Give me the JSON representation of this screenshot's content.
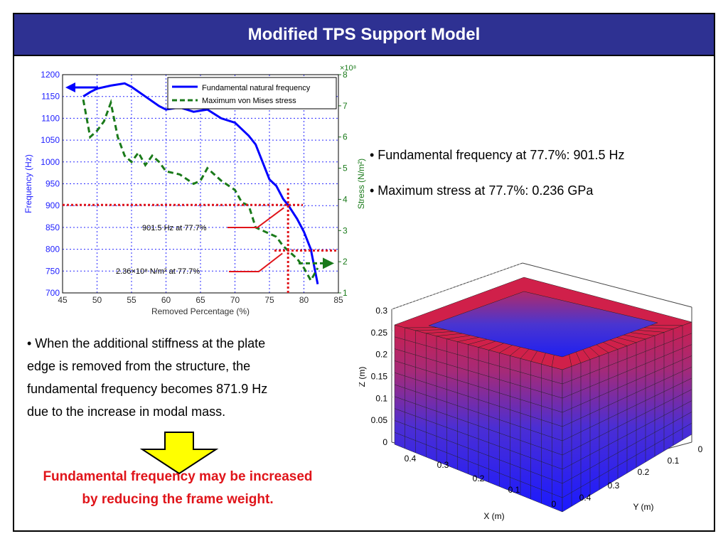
{
  "slide": {
    "title": "Modified TPS Support Model",
    "bullets_right": [
      "• Fundamental frequency at 77.7%: 901.5 Hz",
      "• Maximum stress at 77.7%: 0.236 GPa"
    ],
    "bullet_left_lines": [
      "• When the additional stiffness at the plate",
      "edge is removed from the structure, the",
      "fundamental frequency becomes 871.9 Hz",
      "due to the increase in modal mass."
    ],
    "conclusion_lines": [
      "Fundamental frequency may be increased",
      "by reducing the frame weight."
    ],
    "arrow_icon": "down-arrow-icon"
  },
  "colors": {
    "title_bar": "#2e3192",
    "frequency_line": "#0000ff",
    "stress_line": "#1a7a1a",
    "annotation_red": "#e0141a",
    "arrow_yellow": "#ffff00"
  },
  "chart_data": [
    {
      "type": "line",
      "xlabel": "Removed Percentage (%)",
      "ylabel": "Frequency (Hz)",
      "y2label": "Stress (N/m²)",
      "y2_exponent": "×10⁸",
      "xlim": [
        45,
        85
      ],
      "ylim": [
        700,
        1200
      ],
      "y2lim": [
        1,
        8
      ],
      "xticks": [
        45,
        50,
        55,
        60,
        65,
        70,
        75,
        80,
        85
      ],
      "yticks": [
        700,
        750,
        800,
        850,
        900,
        950,
        1000,
        1050,
        1100,
        1150,
        1200
      ],
      "y2ticks": [
        1,
        2,
        3,
        4,
        5,
        6,
        7,
        8
      ],
      "grid": true,
      "legend_position": "top-right",
      "series": [
        {
          "name": "Fundamental natural frequency",
          "axis": "left",
          "x": [
            48,
            49,
            50,
            52,
            54,
            55,
            57,
            59,
            60,
            62,
            64,
            66,
            68,
            70,
            72,
            73,
            74,
            75,
            76,
            77,
            77.7,
            79,
            80,
            81,
            82
          ],
          "values": [
            1150,
            1160,
            1168,
            1175,
            1180,
            1172,
            1150,
            1128,
            1120,
            1125,
            1115,
            1120,
            1100,
            1090,
            1060,
            1040,
            1000,
            960,
            945,
            915,
            901.5,
            870,
            840,
            800,
            720
          ]
        },
        {
          "name": "Maximum von Mises stress",
          "axis": "right",
          "x": [
            48,
            49,
            50,
            51,
            52,
            53,
            54,
            55,
            56,
            57,
            58,
            59,
            60,
            62,
            64,
            65,
            66,
            67,
            68,
            70,
            71,
            72,
            73,
            74,
            75,
            76,
            77,
            77.7,
            79,
            80,
            81,
            82
          ],
          "values": [
            7.2,
            6.0,
            6.2,
            6.5,
            7.1,
            6.0,
            5.4,
            5.2,
            5.5,
            5.1,
            5.4,
            5.2,
            4.9,
            4.8,
            4.5,
            4.6,
            5.0,
            4.8,
            4.6,
            4.3,
            3.9,
            3.8,
            3.1,
            3.0,
            2.9,
            2.8,
            2.5,
            2.36,
            2.1,
            1.8,
            1.4,
            1.8
          ]
        }
      ],
      "annotations": [
        "901.5 Hz at 77.7%",
        "2.36×10⁸ N/m² at 77.7%"
      ]
    },
    {
      "type": "3d-surface",
      "xlabel": "X (m)",
      "ylabel": "Y (m)",
      "zlabel": "Z (m)",
      "xticks": [
        0,
        0.1,
        0.2,
        0.3,
        0.4
      ],
      "yticks": [
        0,
        0.1,
        0.2,
        0.3,
        0.4
      ],
      "zticks": [
        0,
        0.05,
        0.1,
        0.15,
        0.2,
        0.25,
        0.3
      ],
      "zlim": [
        0,
        0.3
      ]
    }
  ]
}
